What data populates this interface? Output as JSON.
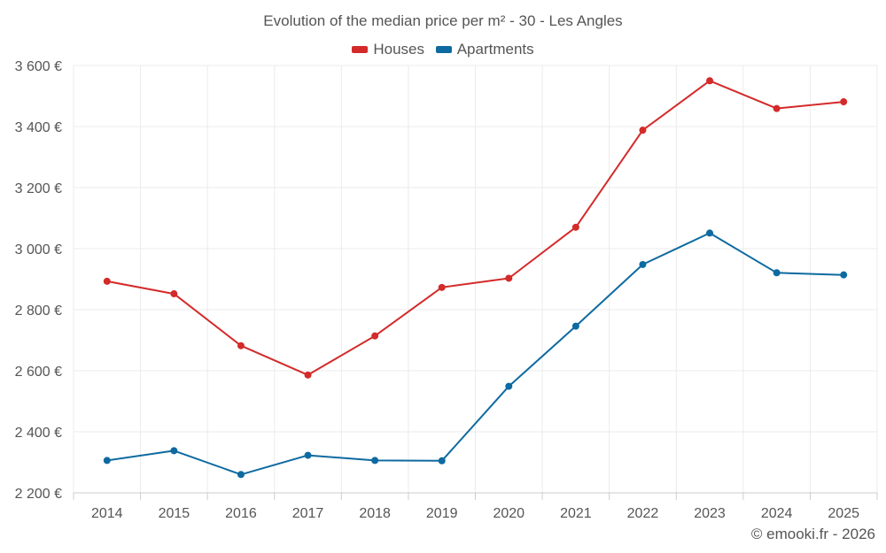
{
  "chart_data": {
    "type": "line",
    "title": "Evolution of the median price per m² - 30 - Les Angles",
    "categories": [
      "2014",
      "2015",
      "2016",
      "2017",
      "2018",
      "2019",
      "2020",
      "2021",
      "2022",
      "2023",
      "2024",
      "2025"
    ],
    "series": [
      {
        "name": "Houses",
        "color": "#d42a2a",
        "values": [
          2893,
          2852,
          2682,
          2586,
          2714,
          2873,
          2903,
          3070,
          3388,
          3550,
          3459,
          3481
        ]
      },
      {
        "name": "Apartments",
        "color": "#0e6aa0",
        "values": [
          2306,
          2338,
          2260,
          2323,
          2306,
          2305,
          2549,
          2746,
          2948,
          3051,
          2921,
          2914
        ]
      }
    ],
    "yticks": [
      2200,
      2400,
      2600,
      2800,
      3000,
      3200,
      3400,
      3600
    ],
    "ytick_labels": [
      "2 200 €",
      "2 400 €",
      "2 600 €",
      "2 800 €",
      "3 000 €",
      "3 200 €",
      "3 400 €",
      "3 600 €"
    ],
    "ylim": [
      2200,
      3600
    ],
    "xlabel": "",
    "ylabel": "",
    "grid": true,
    "legend_position": "top-center"
  },
  "credit": "© emooki.fr - 2026"
}
